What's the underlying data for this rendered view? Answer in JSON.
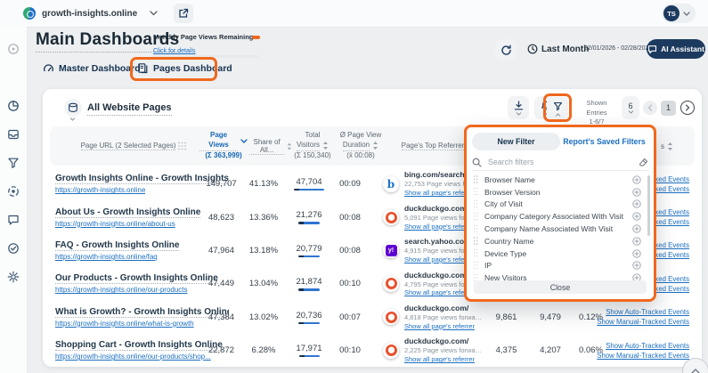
{
  "topbar": {
    "site_name": "growth-insights.online",
    "avatar_initials": "TS"
  },
  "page_header": {
    "title": "Main Dashboards",
    "quota_label": "Monthly Page Views Remaining",
    "quota_link": "Click for details"
  },
  "tabs": {
    "master": "Master Dashboard",
    "pages": "Pages Dashboard"
  },
  "controls": {
    "period_label": "Last Month",
    "date_range": "02/01/2026 - 02/28/2026",
    "ai_button": "AI Assistant"
  },
  "sidebar": {
    "icons": [
      "overview-icon",
      "dashboards-icon",
      "inbox-icon",
      "funnels-icon",
      "goals-icon",
      "messages-icon",
      "verified-icon",
      "settings-icon"
    ]
  },
  "table": {
    "title": "All Website Pages",
    "toolbar": {
      "icons": [
        "export-icon",
        "alerts-icon",
        "filter-icon"
      ],
      "shown_entries_label": "Shown Entries",
      "shown_entries_range": "1-6/7",
      "page_size": "6",
      "current_page": "1"
    },
    "columns": {
      "page_url": "Page URL (2 Selected Pages)",
      "page_views": "Page Views",
      "page_views_total": "(Σ 363,999)",
      "share": "Share of All...",
      "visitors_l1": "Total",
      "visitors_l2": "Visitors",
      "visitors_total": "(Σ 150,340)",
      "duration_l1": "Ø Page View",
      "duration_l2": "Duration",
      "duration_avg": "(x̄ 00:08)",
      "referrer": "Page's Top Referrer",
      "partial_label": "s"
    },
    "rows": [
      {
        "title": "Growth Insights Online - Growth Insights Onl...",
        "url": "https://growth-insights.online",
        "views": "149,707",
        "share": "41.13%",
        "visitors": "47,704",
        "duration": "00:09",
        "referrer": {
          "icon": "bing-icon",
          "domain": "bing.com/search",
          "forwarded": "22,753 Page views forwarded",
          "link": "Show all page's referrer"
        },
        "extra": [
          "",
          "",
          ""
        ]
      },
      {
        "title": "About Us - Growth Insights Online",
        "url": "https://growth-insights.online/about-us",
        "views": "48,623",
        "share": "13.36%",
        "visitors": "21,276",
        "duration": "00:08",
        "referrer": {
          "icon": "duckduckgo-icon",
          "domain": "duckduckgo.com/",
          "forwarded": "5,091 Page views forwarded",
          "link": "Show all page's referrer"
        },
        "extra": [
          "",
          "",
          ""
        ]
      },
      {
        "title": "FAQ - Growth Insights Online",
        "url": "https://growth-insights.online/faq",
        "views": "47,964",
        "share": "13.18%",
        "visitors": "20,779",
        "duration": "00:08",
        "referrer": {
          "icon": "yahoo-icon",
          "domain": "search.yahoo.com/",
          "forwarded": "4,915 Page views forwarded",
          "link": "Show all page's referrer"
        },
        "extra": [
          "",
          "",
          ""
        ]
      },
      {
        "title": "Our Products - Growth Insights Online",
        "url": "https://growth-insights.online/our-products",
        "views": "47,449",
        "share": "13.04%",
        "visitors": "21,874",
        "duration": "00:10",
        "referrer": {
          "icon": "duckduckgo-icon",
          "domain": "duckduckgo.com/",
          "forwarded": "4,795 Page views forwarded",
          "link": "Show all page's referrer"
        },
        "extra": [
          "",
          "",
          ""
        ]
      },
      {
        "title": "What is Growth? - Growth Insights Online",
        "url": "https://growth-insights.online/what-is-growth",
        "views": "47,384",
        "share": "13.02%",
        "visitors": "20,736",
        "duration": "00:07",
        "referrer": {
          "icon": "duckduckgo-icon",
          "domain": "duckduckgo.com/",
          "forwarded": "4,818 Page views forwarded",
          "link": "Show all page's referrer"
        },
        "extra": [
          "9,861",
          "9,479",
          "0.12%"
        ]
      },
      {
        "title": "Shopping Cart - Growth Insights Online",
        "url": "https://growth-insights.online/our-products/shop...",
        "views": "22,872",
        "share": "6.28%",
        "visitors": "17,971",
        "duration": "00:10",
        "referrer": {
          "icon": "duckduckgo-icon",
          "domain": "duckduckgo.com/",
          "forwarded": "2,225 Page views forwarded",
          "link": "Show all page's referrer"
        },
        "extra": [
          "4,375",
          "4,207",
          "0.06%"
        ]
      }
    ]
  },
  "row_actions": {
    "auto": "Show Auto-Tracked Events",
    "manual": "Show Manual-Tracked Events"
  },
  "filter_popup": {
    "tab_new": "New Filter",
    "tab_saved": "Report's Saved Filters",
    "search_placeholder": "Search filters",
    "items": [
      "Browser Name",
      "Browser Version",
      "City of Visit",
      "Company Category Associated With Visit",
      "Company Name Associated With Visit",
      "Country Name",
      "Device Type",
      "IP",
      "New Visitors"
    ],
    "close_label": "Close"
  },
  "colors": {
    "accent_orange": "#F0681E",
    "navy": "#1C3A5E",
    "link_blue": "#1B6FC0",
    "page_views_blue": "#1668B3"
  }
}
